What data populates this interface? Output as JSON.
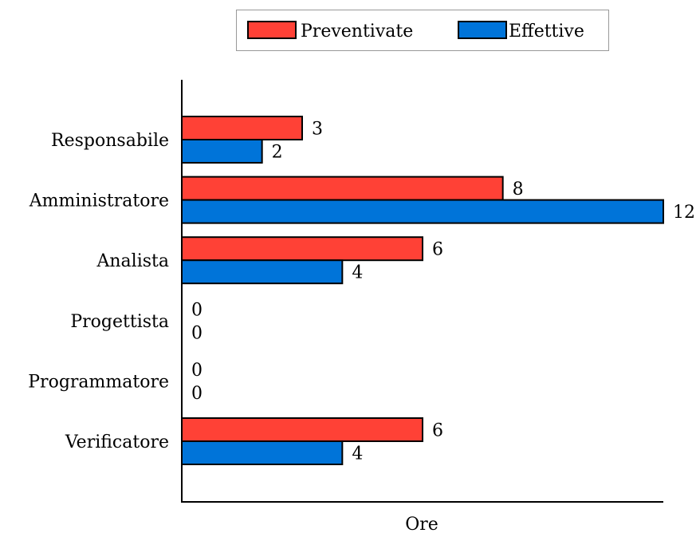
{
  "chart_data": {
    "type": "bar",
    "orientation": "horizontal",
    "categories": [
      "Responsabile",
      "Amministratore",
      "Analista",
      "Progettista",
      "Programmatore",
      "Verificatore"
    ],
    "series": [
      {
        "name": "Preventivate",
        "color": "#ff4136",
        "values": [
          3,
          8,
          6,
          0,
          0,
          6
        ]
      },
      {
        "name": "Effettive",
        "color": "#0074d9",
        "values": [
          2,
          12,
          4,
          0,
          0,
          4
        ]
      }
    ],
    "xlabel": "Ore",
    "ylabel": "",
    "xlim": [
      0,
      12
    ],
    "grid": false,
    "legend": "top"
  }
}
